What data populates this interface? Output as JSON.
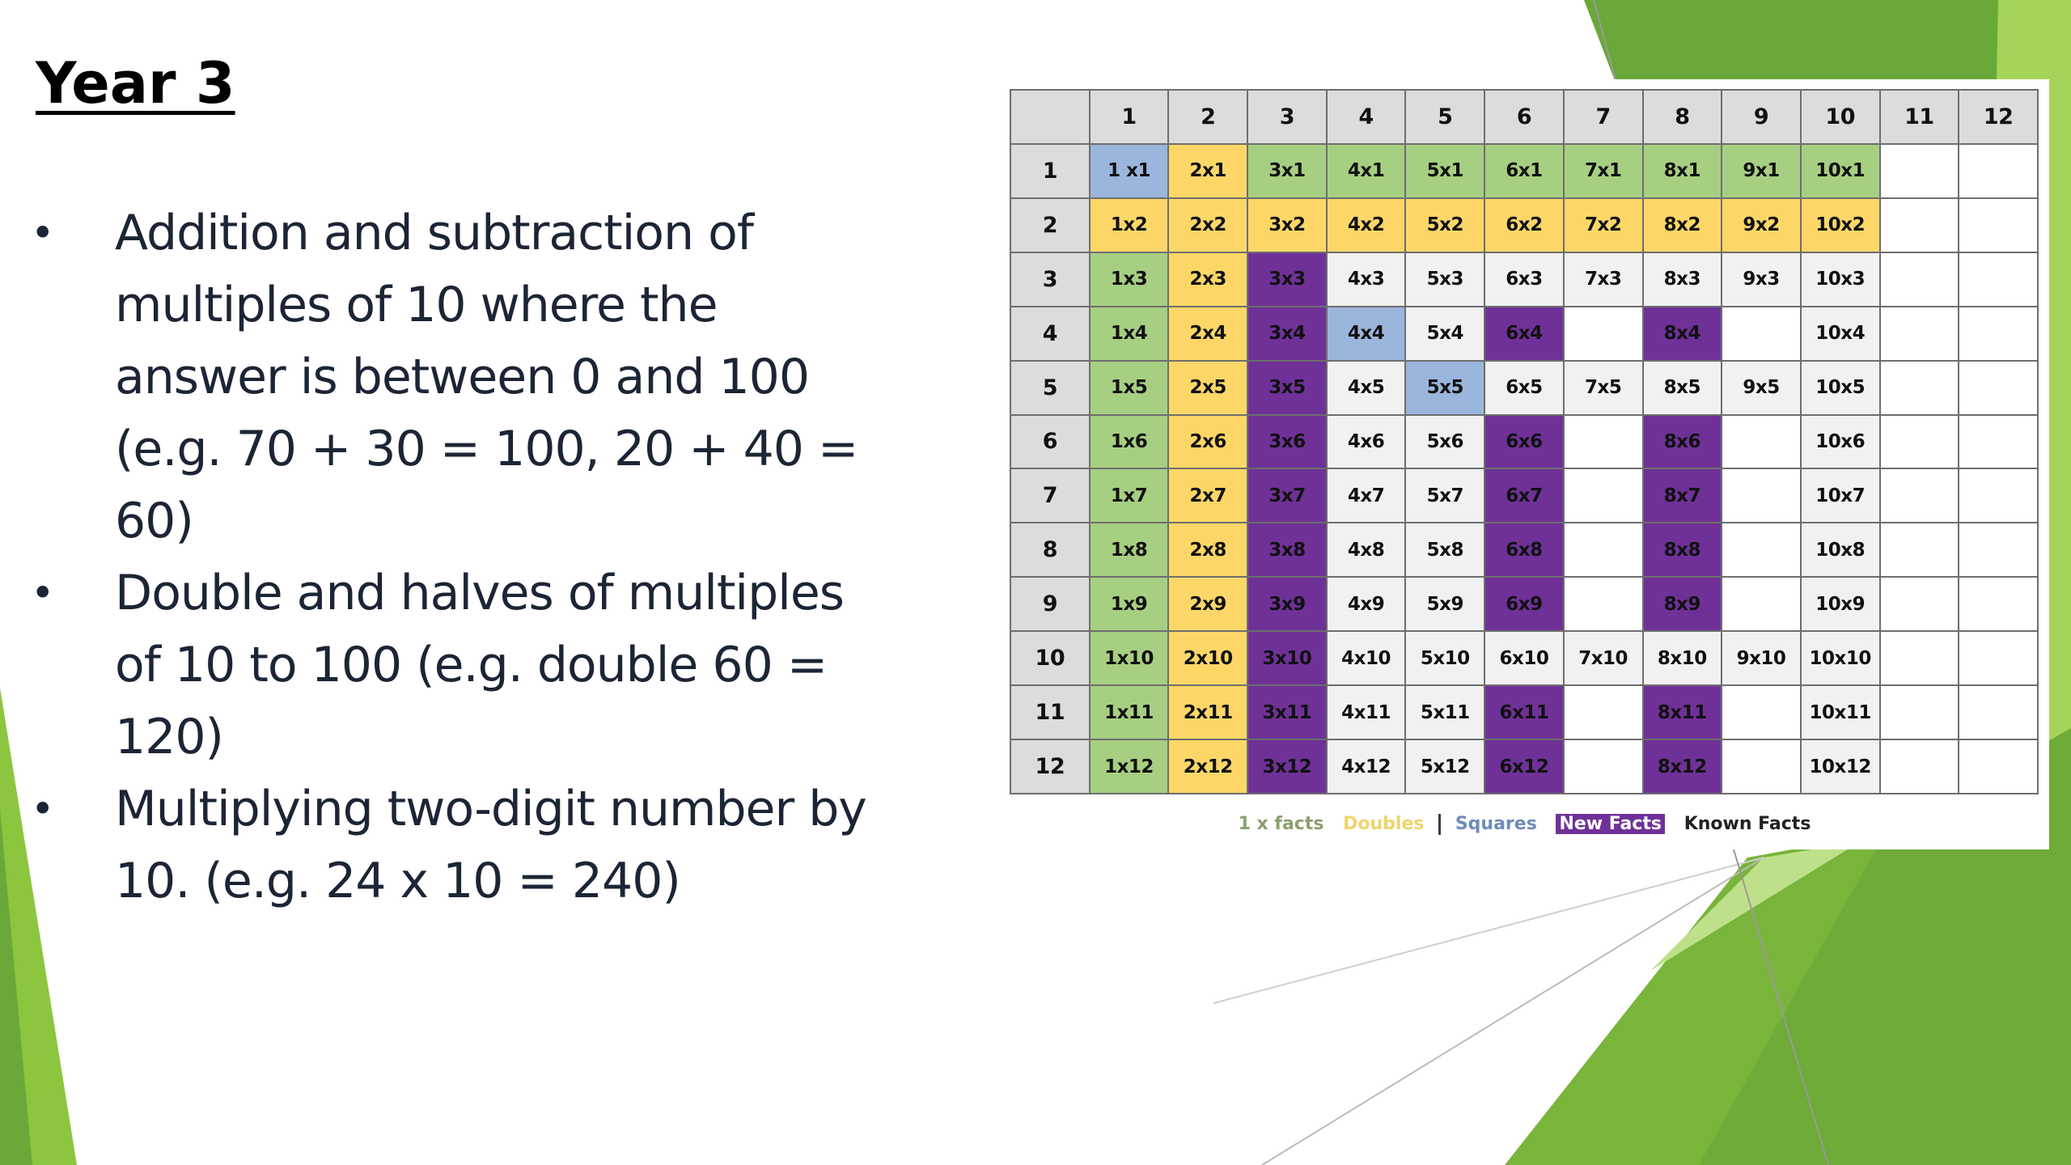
{
  "slide": {
    "title": "Year 3",
    "bullets": [
      {
        "lines": [
          "Addition and subtraction of",
          "multiples of 10 where the",
          "answer is between 0 and 100",
          "(e.g. 70 + 30 = 100, 20 + 40 = 60)"
        ]
      },
      {
        "lines": [
          "Double and halves of multiples",
          "of 10 to 100 (e.g. double 60 =",
          "120)"
        ]
      },
      {
        "lines": [
          "Multiplying two-digit number by",
          "10. (e.g. 24 x 10 = 240)"
        ]
      }
    ],
    "bullet_glyph": "•"
  },
  "colors": {
    "blue": "#9bb6dc",
    "yellow": "#fcd768",
    "green": "#a7cf82",
    "purple": "#6f3198",
    "header": "#dcdcdc",
    "bg_green_dark": "#79b43b",
    "bg_green_light": "#a6d35a"
  },
  "table": {
    "column_headers": [
      "",
      "1",
      "2",
      "3",
      "4",
      "5",
      "6",
      "7",
      "8",
      "9",
      "10",
      "11",
      "12"
    ],
    "rows": [
      {
        "label": "1",
        "cells": [
          [
            "1 x1",
            "blue"
          ],
          [
            "2x1",
            "yellow"
          ],
          [
            "3x1",
            "green"
          ],
          [
            "4x1",
            "green"
          ],
          [
            "5x1",
            "green"
          ],
          [
            "6x1",
            "green"
          ],
          [
            "7x1",
            "green"
          ],
          [
            "8x1",
            "green"
          ],
          [
            "9x1",
            "green"
          ],
          [
            "10x1",
            "green"
          ],
          [
            "",
            "white"
          ],
          [
            "",
            "white"
          ]
        ]
      },
      {
        "label": "2",
        "cells": [
          [
            "1x2",
            "yellow"
          ],
          [
            "2x2",
            "yellow"
          ],
          [
            "3x2",
            "yellow"
          ],
          [
            "4x2",
            "yellow"
          ],
          [
            "5x2",
            "yellow"
          ],
          [
            "6x2",
            "yellow"
          ],
          [
            "7x2",
            "yellow"
          ],
          [
            "8x2",
            "yellow"
          ],
          [
            "9x2",
            "yellow"
          ],
          [
            "10x2",
            "yellow"
          ],
          [
            "",
            "white"
          ],
          [
            "",
            "white"
          ]
        ]
      },
      {
        "label": "3",
        "cells": [
          [
            "1x3",
            "green"
          ],
          [
            "2x3",
            "yellow"
          ],
          [
            "3x3",
            "purple"
          ],
          [
            "4x3",
            "light"
          ],
          [
            "5x3",
            "light"
          ],
          [
            "6x3",
            "light"
          ],
          [
            "7x3",
            "light"
          ],
          [
            "8x3",
            "light"
          ],
          [
            "9x3",
            "light"
          ],
          [
            "10x3",
            "light"
          ],
          [
            "",
            "white"
          ],
          [
            "",
            "white"
          ]
        ]
      },
      {
        "label": "4",
        "cells": [
          [
            "1x4",
            "green"
          ],
          [
            "2x4",
            "yellow"
          ],
          [
            "3x4",
            "purple"
          ],
          [
            "4x4",
            "blue"
          ],
          [
            "5x4",
            "light"
          ],
          [
            "6x4",
            "purple"
          ],
          [
            "",
            "white"
          ],
          [
            "8x4",
            "purple"
          ],
          [
            "",
            "white"
          ],
          [
            "10x4",
            "light"
          ],
          [
            "",
            "white"
          ],
          [
            "",
            "white"
          ]
        ]
      },
      {
        "label": "5",
        "cells": [
          [
            "1x5",
            "green"
          ],
          [
            "2x5",
            "yellow"
          ],
          [
            "3x5",
            "purple"
          ],
          [
            "4x5",
            "light"
          ],
          [
            "5x5",
            "blue"
          ],
          [
            "6x5",
            "light"
          ],
          [
            "7x5",
            "light"
          ],
          [
            "8x5",
            "light"
          ],
          [
            "9x5",
            "light"
          ],
          [
            "10x5",
            "light"
          ],
          [
            "",
            "white"
          ],
          [
            "",
            "white"
          ]
        ]
      },
      {
        "label": "6",
        "cells": [
          [
            "1x6",
            "green"
          ],
          [
            "2x6",
            "yellow"
          ],
          [
            "3x6",
            "purple"
          ],
          [
            "4x6",
            "light"
          ],
          [
            "5x6",
            "light"
          ],
          [
            "6x6",
            "purple"
          ],
          [
            "",
            "white"
          ],
          [
            "8x6",
            "purple"
          ],
          [
            "",
            "white"
          ],
          [
            "10x6",
            "light"
          ],
          [
            "",
            "white"
          ],
          [
            "",
            "white"
          ]
        ]
      },
      {
        "label": "7",
        "cells": [
          [
            "1x7",
            "green"
          ],
          [
            "2x7",
            "yellow"
          ],
          [
            "3x7",
            "purple"
          ],
          [
            "4x7",
            "light"
          ],
          [
            "5x7",
            "light"
          ],
          [
            "6x7",
            "purple"
          ],
          [
            "",
            "white"
          ],
          [
            "8x7",
            "purple"
          ],
          [
            "",
            "white"
          ],
          [
            "10x7",
            "light"
          ],
          [
            "",
            "white"
          ],
          [
            "",
            "white"
          ]
        ]
      },
      {
        "label": "8",
        "cells": [
          [
            "1x8",
            "green"
          ],
          [
            "2x8",
            "yellow"
          ],
          [
            "3x8",
            "purple"
          ],
          [
            "4x8",
            "light"
          ],
          [
            "5x8",
            "light"
          ],
          [
            "6x8",
            "purple"
          ],
          [
            "",
            "white"
          ],
          [
            "8x8",
            "purple"
          ],
          [
            "",
            "white"
          ],
          [
            "10x8",
            "light"
          ],
          [
            "",
            "white"
          ],
          [
            "",
            "white"
          ]
        ]
      },
      {
        "label": "9",
        "cells": [
          [
            "1x9",
            "green"
          ],
          [
            "2x9",
            "yellow"
          ],
          [
            "3x9",
            "purple"
          ],
          [
            "4x9",
            "light"
          ],
          [
            "5x9",
            "light"
          ],
          [
            "6x9",
            "purple"
          ],
          [
            "",
            "white"
          ],
          [
            "8x9",
            "purple"
          ],
          [
            "",
            "white"
          ],
          [
            "10x9",
            "light"
          ],
          [
            "",
            "white"
          ],
          [
            "",
            "white"
          ]
        ]
      },
      {
        "label": "10",
        "cells": [
          [
            "1x10",
            "green"
          ],
          [
            "2x10",
            "yellow"
          ],
          [
            "3x10",
            "purple"
          ],
          [
            "4x10",
            "light"
          ],
          [
            "5x10",
            "light"
          ],
          [
            "6x10",
            "light"
          ],
          [
            "7x10",
            "light"
          ],
          [
            "8x10",
            "light"
          ],
          [
            "9x10",
            "light"
          ],
          [
            "10x10",
            "light"
          ],
          [
            "",
            "white"
          ],
          [
            "",
            "white"
          ]
        ]
      },
      {
        "label": "11",
        "cells": [
          [
            "1x11",
            "green"
          ],
          [
            "2x11",
            "yellow"
          ],
          [
            "3x11",
            "purple"
          ],
          [
            "4x11",
            "light"
          ],
          [
            "5x11",
            "light"
          ],
          [
            "6x11",
            "purple"
          ],
          [
            "",
            "white"
          ],
          [
            "8x11",
            "purple"
          ],
          [
            "",
            "white"
          ],
          [
            "10x11",
            "light"
          ],
          [
            "",
            "white"
          ],
          [
            "",
            "white"
          ]
        ]
      },
      {
        "label": "12",
        "cells": [
          [
            "1x12",
            "green"
          ],
          [
            "2x12",
            "yellow"
          ],
          [
            "3x12",
            "purple"
          ],
          [
            "4x12",
            "light"
          ],
          [
            "5x12",
            "light"
          ],
          [
            "6x12",
            "purple"
          ],
          [
            "",
            "white"
          ],
          [
            "8x12",
            "purple"
          ],
          [
            "",
            "white"
          ],
          [
            "10x12",
            "light"
          ],
          [
            "",
            "white"
          ],
          [
            "",
            "white"
          ]
        ]
      }
    ]
  },
  "legend": {
    "one_x_facts": "1 x facts",
    "doubles": "Doubles",
    "squares": "Squares",
    "new_facts": "New Facts",
    "known_facts": "Known Facts"
  }
}
